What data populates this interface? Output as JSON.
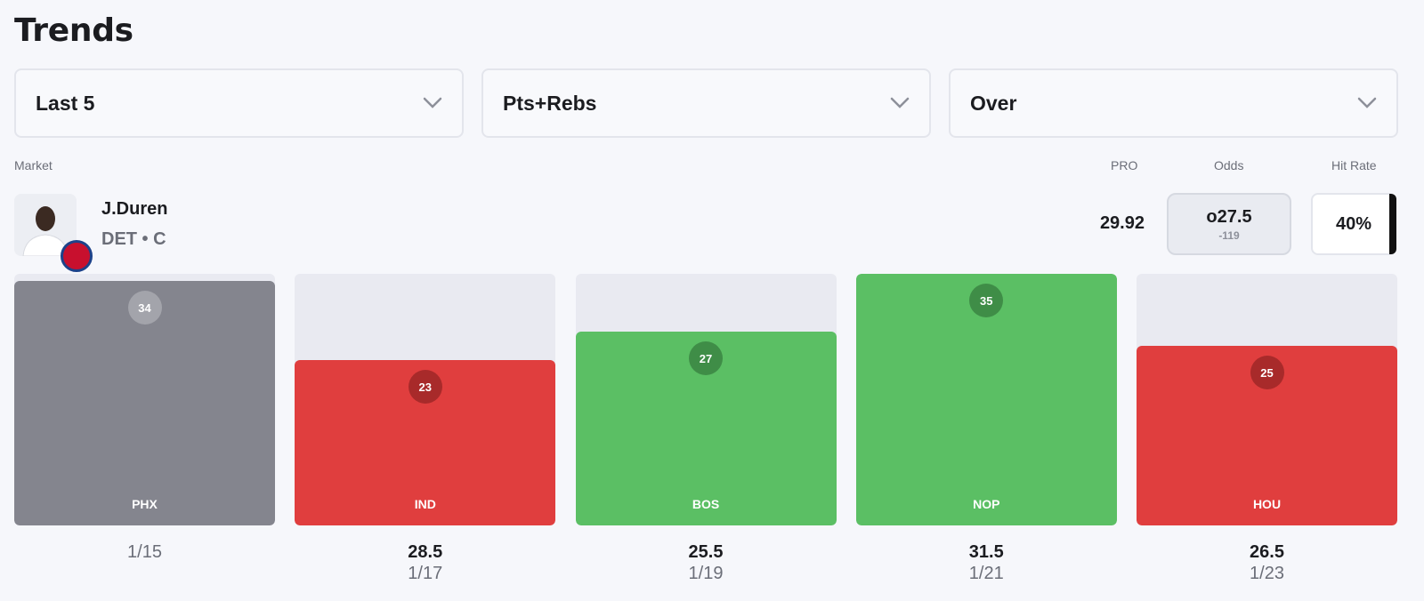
{
  "header": {
    "title": "Trends"
  },
  "filters": [
    {
      "label": "Last 5"
    },
    {
      "label": "Pts+Rebs"
    },
    {
      "label": "Over"
    }
  ],
  "columns_header": {
    "market": "Market",
    "pro": "PRO",
    "odds": "Odds",
    "hit_rate": "Hit Rate"
  },
  "player": {
    "name": "J.Duren",
    "team": "DET",
    "position": "C",
    "meta": "DET • C"
  },
  "stats": {
    "pro": "29.92",
    "odds_line": "o27.5",
    "odds_price": "-119",
    "hit_rate": "40%"
  },
  "colors": {
    "hit": "#5bbf64",
    "miss": "#e03e3e",
    "neutral": "#84858e",
    "track": "#e9eaf1"
  },
  "chart_data": {
    "type": "bar",
    "categories": [
      "PHX",
      "IND",
      "BOS",
      "NOP",
      "HOU"
    ],
    "values": [
      34,
      23,
      27,
      35,
      25
    ],
    "lines": [
      "",
      "28.5",
      "25.5",
      "31.5",
      "26.5"
    ],
    "dates": [
      "1/15",
      "1/17",
      "1/19",
      "1/21",
      "1/23"
    ],
    "status": [
      "neutral",
      "miss",
      "hit",
      "hit",
      "miss"
    ],
    "ylim": [
      0,
      35
    ]
  }
}
